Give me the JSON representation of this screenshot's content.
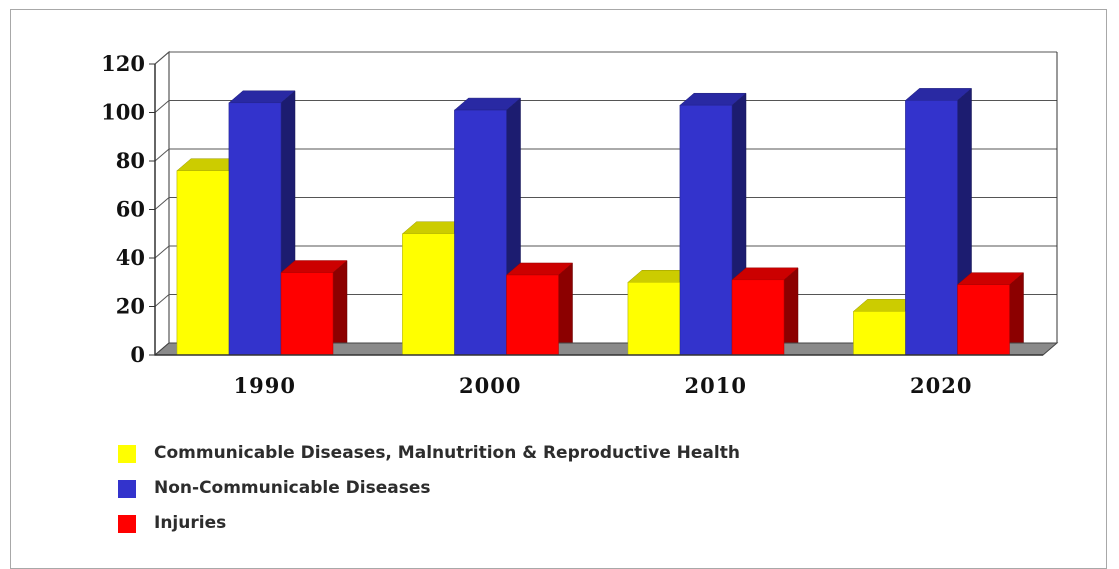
{
  "chart_data": {
    "type": "bar",
    "title": "",
    "xlabel": "",
    "ylabel": "",
    "categories": [
      "1990",
      "2000",
      "2010",
      "2020"
    ],
    "ylim": [
      0,
      120
    ],
    "yticks": [
      "0",
      "20",
      "40",
      "60",
      "80",
      "100",
      "120"
    ],
    "grid": true,
    "legend_position": "bottom-left",
    "series": [
      {
        "name": "Communicable Diseases, Malnutrition & Reproductive Health",
        "color": "#ffff00",
        "values": [
          76,
          50,
          30,
          18
        ]
      },
      {
        "name": "Non-Communicable Diseases",
        "color": "#3333cc",
        "values": [
          104,
          101,
          103,
          105
        ]
      },
      {
        "name": "Injuries",
        "color": "#ff0000",
        "values": [
          34,
          33,
          31,
          29
        ]
      }
    ]
  },
  "legend": {
    "items": [
      {
        "label": "Communicable Diseases, Malnutrition & Reproductive Health",
        "color": "#ffff00",
        "icon": "square-swatch"
      },
      {
        "label": "Non-Communicable Diseases",
        "color": "#3333cc",
        "icon": "square-swatch"
      },
      {
        "label": "Injuries",
        "color": "#ff0000",
        "icon": "square-swatch"
      }
    ]
  }
}
